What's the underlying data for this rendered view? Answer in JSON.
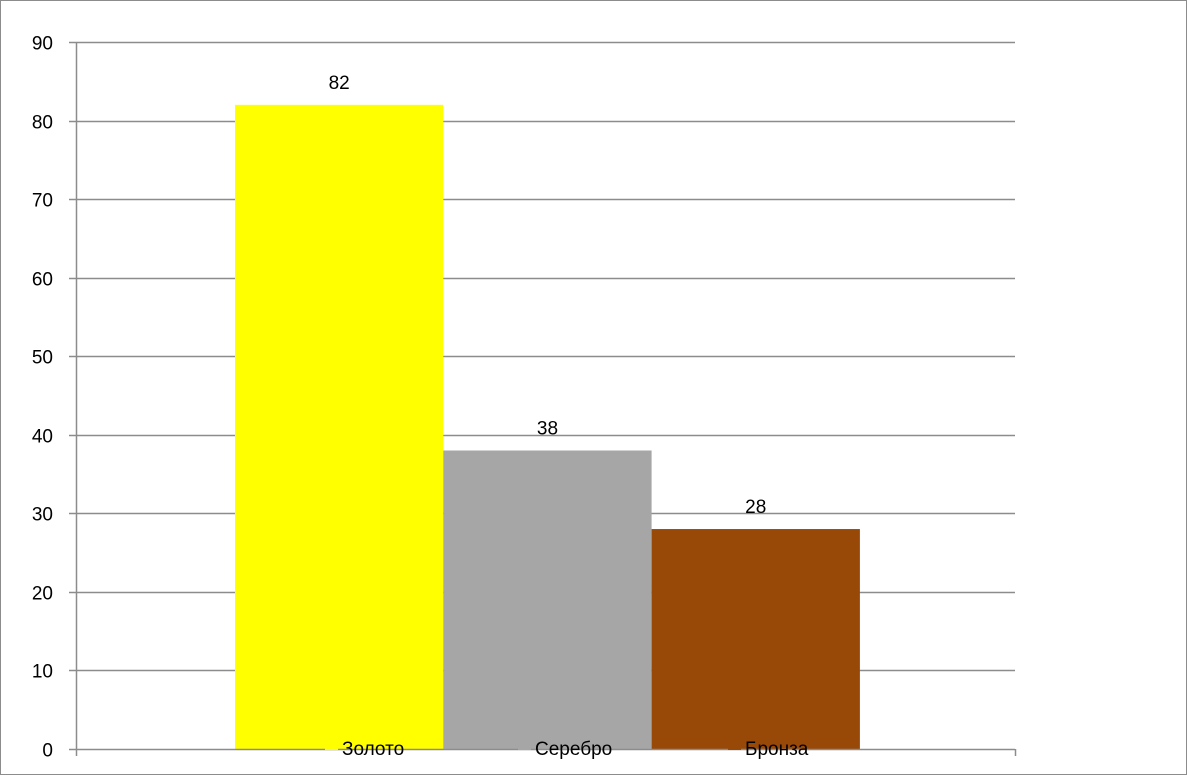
{
  "chart_data": {
    "type": "bar",
    "title": "",
    "xlabel": "",
    "ylabel": "",
    "ylim": [
      0,
      90
    ],
    "yticks": [
      0,
      10,
      20,
      30,
      40,
      50,
      60,
      70,
      80,
      90
    ],
    "grid": true,
    "legend_position": "bottom",
    "series": [
      {
        "name": "Золото",
        "values": [
          82
        ],
        "color": "#FFFF00"
      },
      {
        "name": "Серебро",
        "values": [
          38
        ],
        "color": "#A6A6A6"
      },
      {
        "name": "Бронза",
        "values": [
          28
        ],
        "color": "#984807"
      }
    ],
    "data_labels": [
      "82",
      "38",
      "28"
    ]
  }
}
